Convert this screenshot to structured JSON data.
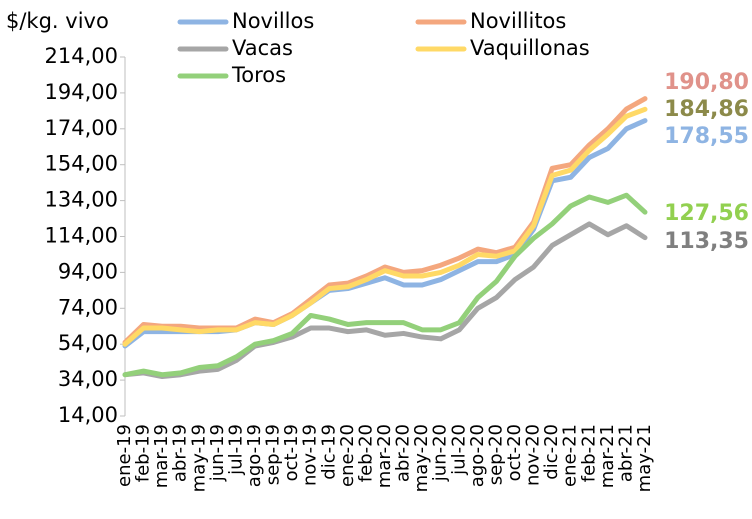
{
  "chart_data": {
    "type": "line",
    "y_axis_label": "$/kg. vivo",
    "categories": [
      "ene-19",
      "feb-19",
      "mar-19",
      "abr-19",
      "may-19",
      "jun-19",
      "jul-19",
      "ago-19",
      "sep-19",
      "oct-19",
      "nov-19",
      "dic-19",
      "ene-20",
      "feb-20",
      "mar-20",
      "abr-20",
      "may-20",
      "jun-20",
      "jul-20",
      "ago-20",
      "sep-20",
      "oct-20",
      "nov-20",
      "dic-20",
      "ene-21",
      "feb-21",
      "mar-21",
      "abr-21",
      "may-21"
    ],
    "series": [
      {
        "name": "Novillos",
        "color": "#8eb4e3",
        "label_color": "#8eb4e3",
        "values": [
          53,
          61,
          61,
          61,
          61,
          61,
          62,
          66,
          65,
          70,
          77,
          84,
          85,
          88,
          91,
          87,
          87,
          90,
          95,
          100,
          100,
          104,
          118,
          145,
          147,
          158,
          163,
          174,
          178.55
        ],
        "value_labels": [
          null,
          null,
          null,
          null,
          null,
          null,
          null,
          null,
          null,
          null,
          null,
          null,
          null,
          null,
          null,
          null,
          null,
          null,
          null,
          null,
          null,
          null,
          null,
          null,
          null,
          null,
          null,
          null,
          "178,55"
        ]
      },
      {
        "name": "Novillitos",
        "color": "#f4a77e",
        "label_color": "#e0928a",
        "values": [
          55,
          65,
          64,
          64,
          63,
          63,
          63,
          68,
          66,
          71,
          79,
          87,
          88,
          92,
          97,
          94,
          95,
          98,
          102,
          107,
          105,
          108,
          122,
          152,
          154,
          165,
          174,
          185,
          190.8
        ],
        "value_labels": [
          null,
          null,
          null,
          null,
          null,
          null,
          null,
          null,
          null,
          null,
          null,
          null,
          null,
          null,
          null,
          null,
          null,
          null,
          null,
          null,
          null,
          null,
          null,
          null,
          null,
          null,
          null,
          null,
          "190,80"
        ]
      },
      {
        "name": "Vacas",
        "color": "#a6a6a6",
        "label_color": "#7f7f7f",
        "values": [
          37,
          38,
          36,
          37,
          39,
          40,
          45,
          53,
          55,
          58,
          63,
          63,
          61,
          62,
          59,
          60,
          58,
          57,
          62,
          74,
          80,
          90,
          97,
          109,
          115,
          121,
          115,
          120,
          113.35
        ],
        "value_labels": [
          null,
          null,
          null,
          null,
          null,
          null,
          null,
          null,
          null,
          null,
          null,
          null,
          null,
          null,
          null,
          null,
          null,
          null,
          null,
          null,
          null,
          null,
          null,
          null,
          null,
          null,
          null,
          null,
          "113,35"
        ]
      },
      {
        "name": "Vaquillonas",
        "color": "#ffd966",
        "label_color": "#8c8a4a",
        "values": [
          54,
          63,
          63,
          62,
          61,
          62,
          62,
          66,
          65,
          70,
          77,
          85,
          86,
          90,
          95,
          92,
          92,
          94,
          98,
          104,
          103,
          106,
          120,
          148,
          151,
          162,
          171,
          181,
          184.86
        ],
        "value_labels": [
          null,
          null,
          null,
          null,
          null,
          null,
          null,
          null,
          null,
          null,
          null,
          null,
          null,
          null,
          null,
          null,
          null,
          null,
          null,
          null,
          null,
          null,
          null,
          null,
          null,
          null,
          null,
          null,
          "184,86"
        ]
      },
      {
        "name": "Toros",
        "color": "#93d07a",
        "label_color": "#92d050",
        "values": [
          37,
          39,
          37,
          38,
          41,
          42,
          47,
          54,
          56,
          60,
          70,
          68,
          65,
          66,
          66,
          66,
          62,
          62,
          66,
          80,
          89,
          103,
          113,
          121,
          131,
          136,
          133,
          137,
          127.56
        ],
        "value_labels": [
          null,
          null,
          null,
          null,
          null,
          null,
          null,
          null,
          null,
          null,
          null,
          null,
          null,
          null,
          null,
          null,
          null,
          null,
          null,
          null,
          null,
          null,
          null,
          null,
          null,
          null,
          null,
          null,
          "127,56"
        ]
      }
    ],
    "ylim": [
      14,
      214
    ],
    "yticks": [
      {
        "value": 14,
        "label": "14,00"
      },
      {
        "value": 34,
        "label": "34,00"
      },
      {
        "value": 54,
        "label": "54,00"
      },
      {
        "value": 74,
        "label": "74,00"
      },
      {
        "value": 94,
        "label": "94,00"
      },
      {
        "value": 114,
        "label": "114,00"
      },
      {
        "value": 134,
        "label": "134,00"
      },
      {
        "value": 154,
        "label": "154,00"
      },
      {
        "value": 174,
        "label": "174,00"
      },
      {
        "value": 194,
        "label": "194,00"
      },
      {
        "value": 214,
        "label": "214,00"
      }
    ],
    "grid": false
  }
}
